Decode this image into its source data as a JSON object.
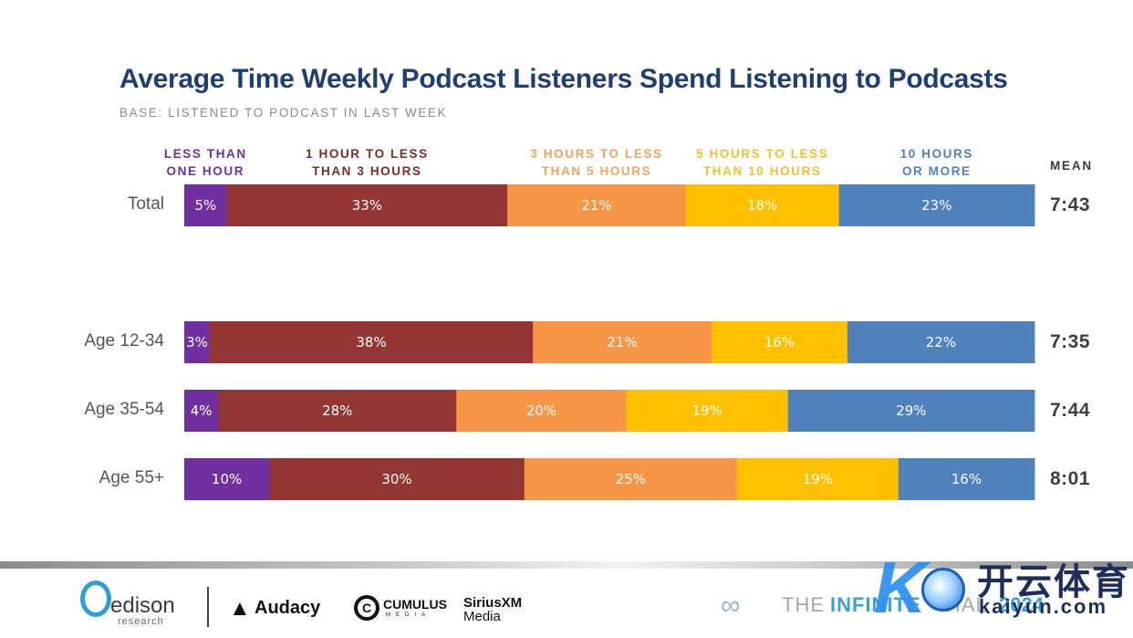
{
  "chart_data": {
    "type": "bar",
    "orientation": "horizontal",
    "stacked": true,
    "normalized": true,
    "title": "Average Time Weekly Podcast Listeners Spend Listening to Podcasts",
    "subtitle": "BASE: LISTENED TO PODCAST IN LAST WEEK",
    "xlabel": "",
    "ylabel": "",
    "xlim": [
      0,
      100
    ],
    "grid": false,
    "legend_position": "top",
    "categories": [
      "Total",
      "Age 12-34",
      "Age 35-54",
      "Age 55+"
    ],
    "series": [
      {
        "name": "LESS THAN ONE HOUR",
        "legend_lines": [
          "LESS THAN",
          "ONE HOUR"
        ],
        "color": "#7030a0",
        "values": [
          5,
          3,
          4,
          10
        ]
      },
      {
        "name": "1 HOUR TO LESS THAN 3 HOURS",
        "legend_lines": [
          "1 HOUR TO LESS",
          "THAN 3 HOURS"
        ],
        "color": "#943634",
        "values": [
          33,
          38,
          28,
          30
        ]
      },
      {
        "name": "3 HOURS TO LESS THAN 5 HOURS",
        "legend_lines": [
          "3 HOURS TO LESS",
          "THAN 5 HOURS"
        ],
        "color": "#f79646",
        "values": [
          21,
          21,
          20,
          25
        ]
      },
      {
        "name": "5 HOURS TO LESS THAN 10 HOURS",
        "legend_lines": [
          "5 HOURS TO LESS",
          "THAN 10 HOURS"
        ],
        "color": "#ffc000",
        "values": [
          18,
          16,
          19,
          19
        ]
      },
      {
        "name": "10 HOURS OR MORE",
        "legend_lines": [
          "10 HOURS",
          "OR MORE"
        ],
        "color": "#4f81bd",
        "values": [
          23,
          22,
          29,
          16
        ]
      }
    ],
    "legend_text_colors": [
      "#7030a0",
      "#7b2c2a",
      "#f2a35e",
      "#f0c030",
      "#4f81bd"
    ],
    "mean_header": "MEAN",
    "means": [
      "7:43",
      "7:35",
      "7:44",
      "8:01"
    ]
  },
  "footer": {
    "edison": {
      "word": "edison",
      "sub": "research"
    },
    "audacy": {
      "icon": "▲",
      "word": "Audacy"
    },
    "cumulus": {
      "icon": "C",
      "word": "CUMULUS",
      "sub": "MEDIA"
    },
    "sirius": {
      "word": "SiriusXM",
      "sub": "Media"
    },
    "infinite_dial": {
      "icon": "∞",
      "the": "THE",
      "word": "INFINITE",
      "dial": "DIAL",
      "year": "2024"
    },
    "watermark": {
      "letter": "K",
      "cn": "开云体育",
      "url": "kaiyun.com"
    }
  }
}
